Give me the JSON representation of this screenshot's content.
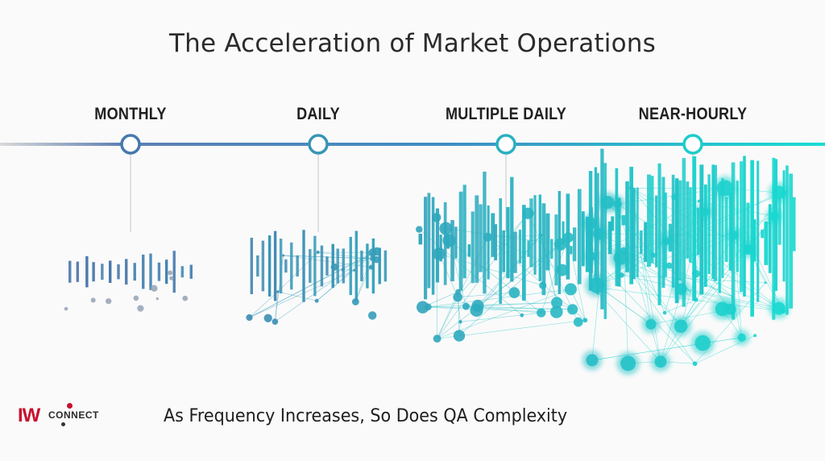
{
  "title": "The Acceleration of Market Operations",
  "stages": [
    {
      "label": "MONTHLY",
      "density": 0.12
    },
    {
      "label": "DAILY",
      "density": 0.3
    },
    {
      "label": "MULTIPLE DAILY",
      "density": 0.7
    },
    {
      "label": "NEAR-HOURLY",
      "density": 1.0
    }
  ],
  "footer": "As Frequency Increases, So Does QA Complexity",
  "logo": {
    "mark": "IW",
    "wordmark": "CONNECT"
  },
  "colors": {
    "start": "#4a6fa8",
    "end": "#19d8d0",
    "logo_red": "#c8102e"
  }
}
